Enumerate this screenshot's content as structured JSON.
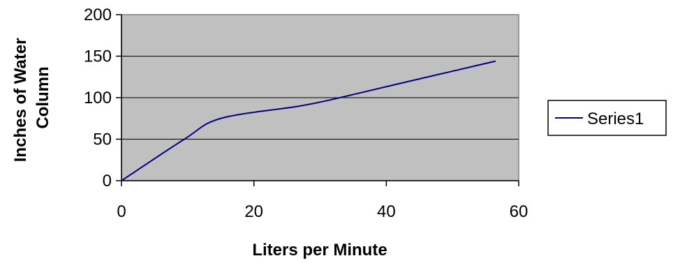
{
  "chart_data": {
    "type": "line",
    "title": "",
    "xlabel": "Liters per Minute",
    "ylabel_lines": [
      "Inches of Water",
      "Column"
    ],
    "xlim": [
      0,
      60
    ],
    "ylim": [
      0,
      200
    ],
    "x_ticks": [
      0,
      20,
      40,
      60
    ],
    "x_tick_labels": [
      "0",
      "20",
      "40",
      "60"
    ],
    "y_ticks": [
      0,
      50,
      100,
      150,
      200
    ],
    "y_tick_labels": [
      "0",
      "50",
      "100",
      "150",
      "200"
    ],
    "grid": "horizontal",
    "legend_position": "right",
    "plot_background": "#c0c0c0",
    "series": [
      {
        "name": "Series1",
        "color": "#000080",
        "x": [
          0,
          9.5,
          15,
          27,
          33,
          42,
          56.5
        ],
        "y": [
          0,
          50,
          75,
          90,
          100,
          117,
          144
        ]
      }
    ]
  }
}
